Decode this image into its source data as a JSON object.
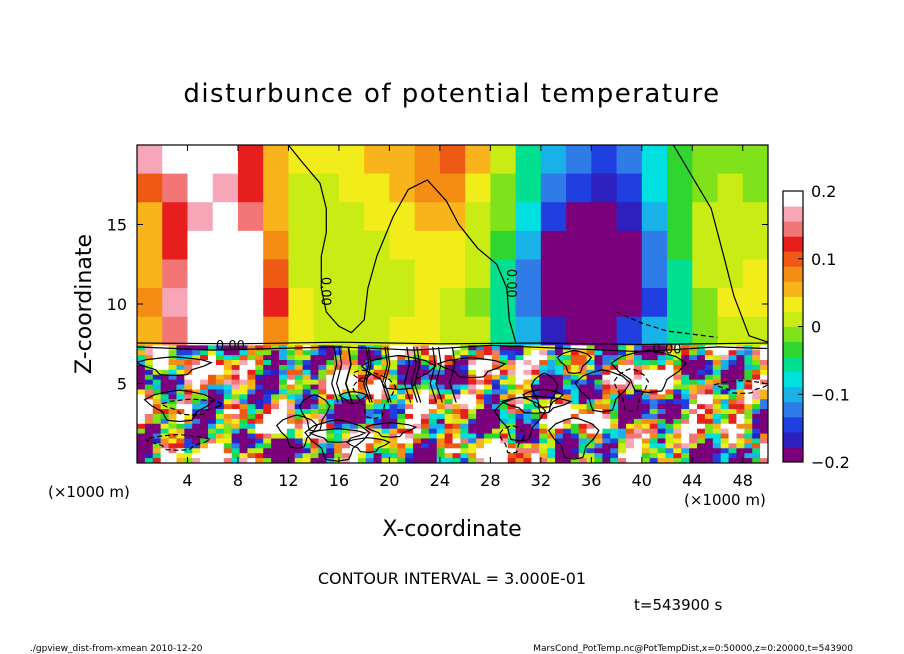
{
  "chart_data": {
    "type": "heatmap",
    "title": "disturbunce of potential temperature",
    "xlabel": "X-coordinate",
    "ylabel": "Z-coordinate",
    "x_unit_left": "(×1000 m)",
    "x_unit_right": "(×1000 m)",
    "y_unit_left": "(×1000 m)",
    "xlim": [
      0,
      50
    ],
    "ylim": [
      0,
      20
    ],
    "x_ticks": [
      4,
      8,
      12,
      16,
      20,
      24,
      28,
      32,
      36,
      40,
      44,
      48
    ],
    "y_ticks": [
      5,
      10,
      15
    ],
    "colorbar": {
      "range": [
        -0.2,
        0.2
      ],
      "ticks": [
        {
          "value": 0.2,
          "label": "0.2"
        },
        {
          "value": 0.1,
          "label": "0.1"
        },
        {
          "value": 0,
          "label": "0"
        },
        {
          "value": -0.1,
          "label": "−0.1"
        },
        {
          "value": -0.2,
          "label": "−0.2"
        }
      ],
      "colors": [
        "#7b007b",
        "#2e1fbf",
        "#1f3fe0",
        "#2f7be8",
        "#19b2e8",
        "#00e0e0",
        "#00e090",
        "#2fd62f",
        "#7fe21a",
        "#c8ec14",
        "#f2ec1a",
        "#f8b41a",
        "#f58c14",
        "#ee5a14",
        "#e61e1e",
        "#f27676",
        "#f6a6b6",
        "#ffffff"
      ]
    },
    "contour_labels": [
      {
        "text": "0.00",
        "x": 14.6,
        "z": 10.8,
        "rotate": 90
      },
      {
        "text": "0.00",
        "x": 29.3,
        "z": 11.3,
        "rotate": 90
      },
      {
        "text": "0.00",
        "x": 7.4,
        "z": 7.1,
        "rotate": 0
      },
      {
        "text": "0.00",
        "x": 42.0,
        "z": 6.9,
        "rotate": 0
      }
    ],
    "upper_field": [
      [
        0.16,
        0.18,
        0.19,
        0.18,
        0.12,
        0.05,
        0.04,
        0.04,
        0.04,
        0.05,
        0.06,
        0.08,
        0.09,
        0.05,
        0.0,
        -0.05,
        -0.09,
        -0.12,
        -0.14,
        -0.13,
        -0.08,
        -0.04,
        -0.02,
        -0.01,
        -0.02
      ],
      [
        0.1,
        0.15,
        0.18,
        0.17,
        0.12,
        0.05,
        0.02,
        0.02,
        0.03,
        0.04,
        0.05,
        0.07,
        0.08,
        0.04,
        -0.01,
        -0.06,
        -0.12,
        -0.15,
        -0.16,
        -0.14,
        -0.08,
        -0.03,
        -0.01,
        0.0,
        -0.01
      ],
      [
        0.06,
        0.12,
        0.17,
        0.19,
        0.15,
        0.06,
        0.02,
        0.01,
        0.02,
        0.03,
        0.04,
        0.06,
        0.06,
        0.02,
        -0.02,
        -0.08,
        -0.15,
        -0.19,
        -0.19,
        -0.16,
        -0.1,
        -0.03,
        0.0,
        0.01,
        0.0
      ],
      [
        0.05,
        0.12,
        0.18,
        0.21,
        0.18,
        0.07,
        0.01,
        0.0,
        0.01,
        0.02,
        0.03,
        0.04,
        0.04,
        0.01,
        -0.04,
        -0.1,
        -0.18,
        -0.22,
        -0.22,
        -0.19,
        -0.12,
        -0.04,
        0.0,
        0.02,
        0.01
      ],
      [
        0.06,
        0.14,
        0.22,
        0.26,
        0.22,
        0.09,
        0.02,
        0.0,
        0.01,
        0.02,
        0.02,
        0.03,
        0.03,
        0.0,
        -0.05,
        -0.12,
        -0.2,
        -0.25,
        -0.26,
        -0.21,
        -0.13,
        -0.05,
        0.0,
        0.02,
        0.03
      ],
      [
        0.07,
        0.16,
        0.26,
        0.3,
        0.26,
        0.12,
        0.03,
        0.01,
        0.01,
        0.01,
        0.02,
        0.03,
        0.02,
        -0.01,
        -0.06,
        -0.13,
        -0.21,
        -0.3,
        -0.31,
        -0.23,
        -0.14,
        -0.06,
        -0.01,
        0.03,
        0.04
      ],
      [
        0.05,
        0.14,
        0.22,
        0.24,
        0.18,
        0.08,
        0.03,
        0.02,
        0.02,
        0.02,
        0.03,
        0.03,
        0.02,
        0.0,
        -0.05,
        -0.11,
        -0.17,
        -0.2,
        -0.19,
        -0.15,
        -0.1,
        -0.05,
        -0.02,
        0.0,
        0.01
      ]
    ],
    "lower_field_seed": 543900
  },
  "annotations": {
    "contour_interval": "CONTOUR INTERVAL = 3.000E-01",
    "time": "t=543900  s",
    "footer_left": "./gpview_dist-from-xmean   2010-12-20",
    "footer_right": "MarsCond_PotTemp.nc@PotTempDist,x=0:50000,z=0:20000,t=543900"
  }
}
